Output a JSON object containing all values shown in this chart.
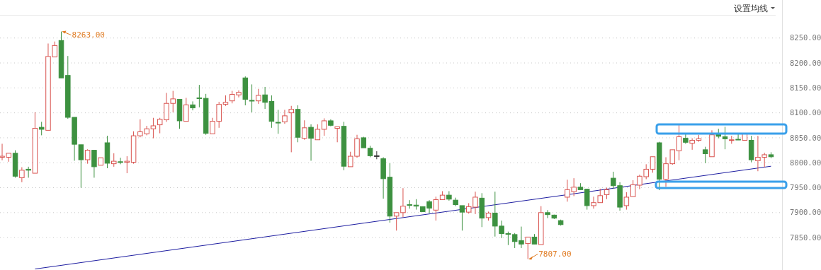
{
  "chart_data": {
    "type": "candlestick",
    "categories": [
      null,
      null,
      null,
      null,
      null,
      null,
      null,
      null,
      null,
      null,
      null,
      null,
      null,
      null,
      null,
      null,
      null,
      null,
      null,
      null,
      null,
      null,
      null,
      null,
      null,
      null,
      null,
      null,
      null,
      null,
      null,
      null,
      null,
      null,
      null,
      null,
      null,
      null,
      null,
      null,
      null,
      null,
      null,
      null,
      null,
      null,
      null,
      null,
      null,
      null,
      null,
      null,
      null,
      null,
      null,
      null,
      null,
      null,
      null,
      null,
      null,
      null,
      null,
      null,
      null,
      null,
      null,
      null,
      null,
      null,
      null,
      null,
      null,
      null,
      null,
      null,
      null,
      null,
      null,
      null,
      null,
      null,
      null,
      null,
      null,
      null,
      null,
      null,
      null,
      null,
      null,
      null,
      null,
      null,
      null,
      null,
      null,
      null,
      null,
      null,
      null,
      null,
      null,
      null,
      null,
      null,
      null,
      null,
      null,
      null,
      null,
      null,
      null,
      null,
      null,
      null,
      null,
      null
    ],
    "ohlc": [
      [
        8011,
        8038,
        8005,
        8013
      ],
      [
        8011,
        8019,
        8002,
        8019
      ],
      [
        8019,
        8025,
        7970,
        7973
      ],
      [
        7970,
        7991,
        7961,
        7985
      ],
      [
        7987,
        7992,
        7970,
        7985
      ],
      [
        7979,
        8101,
        7979,
        8069
      ],
      [
        8071,
        8082,
        8055,
        8067
      ],
      [
        8065,
        8239,
        8065,
        8213
      ],
      [
        8212,
        8243,
        8212,
        8235
      ],
      [
        8245,
        8263,
        8170,
        8170
      ],
      [
        8175,
        8214,
        8088,
        8091
      ],
      [
        8091,
        8091,
        8004,
        8037
      ],
      [
        8036,
        8036,
        7950,
        8006
      ],
      [
        8006,
        8027,
        7998,
        8025
      ],
      [
        8025,
        8025,
        7970,
        7992
      ],
      [
        7995,
        8010,
        7995,
        8010
      ],
      [
        8040,
        8054,
        7989,
        7999
      ],
      [
        7998,
        8019,
        7992,
        8003
      ],
      [
        8002,
        8010,
        7997,
        8001
      ],
      [
        8001,
        8013,
        7979,
        8003
      ],
      [
        8001,
        8063,
        7998,
        8054
      ],
      [
        8054,
        8087,
        8051,
        8062
      ],
      [
        8058,
        8074,
        8055,
        8068
      ],
      [
        8068,
        8090,
        8049,
        8074
      ],
      [
        8076,
        8090,
        8059,
        8087
      ],
      [
        8086,
        8140,
        8082,
        8119
      ],
      [
        8119,
        8144,
        8101,
        8128
      ],
      [
        8127,
        8127,
        8068,
        8084
      ],
      [
        8083,
        8130,
        8083,
        8116
      ],
      [
        8116,
        8123,
        8105,
        8110
      ],
      [
        8130,
        8156,
        8111,
        8129
      ],
      [
        8129,
        8138,
        8056,
        8059
      ],
      [
        8058,
        8090,
        8058,
        8083
      ],
      [
        8083,
        8122,
        8070,
        8117
      ],
      [
        8117,
        8135,
        8114,
        8121
      ],
      [
        8124,
        8144,
        8119,
        8137
      ],
      [
        8136,
        8145,
        8131,
        8141
      ],
      [
        8170,
        8173,
        8115,
        8127
      ],
      [
        8125,
        8157,
        8101,
        8124
      ],
      [
        8124,
        8148,
        8118,
        8135
      ],
      [
        8136,
        8152,
        8108,
        8121
      ],
      [
        8123,
        8135,
        8070,
        8083
      ],
      [
        8081,
        8106,
        8058,
        8080
      ],
      [
        8082,
        8106,
        8078,
        8094
      ],
      [
        8100,
        8114,
        8021,
        8107
      ],
      [
        8107,
        8115,
        8041,
        8051
      ],
      [
        8049,
        8085,
        8046,
        8070
      ],
      [
        8071,
        8077,
        8004,
        8049
      ],
      [
        8046,
        8077,
        8046,
        8067
      ],
      [
        8067,
        8089,
        8054,
        8084
      ],
      [
        8084,
        8087,
        8073,
        8075
      ],
      [
        8069,
        8072,
        8041,
        8072
      ],
      [
        8073,
        8082,
        7985,
        7993
      ],
      [
        7992,
        8022,
        7992,
        8013
      ],
      [
        8013,
        8056,
        8010,
        8048
      ],
      [
        8050,
        8052,
        8030,
        8030
      ],
      [
        8029,
        8034,
        8011,
        8014
      ],
      [
        8014,
        8023,
        8007,
        8013
      ],
      [
        8008,
        8011,
        7928,
        7968
      ],
      [
        7971,
        7999,
        7880,
        7893
      ],
      [
        7893,
        7900,
        7864,
        7900
      ],
      [
        7900,
        7949,
        7891,
        7913
      ],
      [
        7916,
        7925,
        7908,
        7915
      ],
      [
        7915,
        7927,
        7906,
        7913
      ],
      [
        7912,
        7912,
        7902,
        7902
      ],
      [
        7922,
        7925,
        7899,
        7909
      ],
      [
        7905,
        7932,
        7884,
        7926
      ],
      [
        7926,
        7943,
        7926,
        7935
      ],
      [
        7935,
        7943,
        7924,
        7927
      ],
      [
        7925,
        7930,
        7913,
        7916
      ],
      [
        7914,
        7914,
        7864,
        7901
      ],
      [
        7901,
        7919,
        7898,
        7912
      ],
      [
        7911,
        7942,
        7897,
        7931
      ],
      [
        7929,
        7939,
        7871,
        7889
      ],
      [
        7890,
        7902,
        7884,
        7899
      ],
      [
        7899,
        7942,
        7852,
        7873
      ],
      [
        7873,
        7884,
        7849,
        7858
      ],
      [
        7858,
        7862,
        7835,
        7857
      ],
      [
        7856,
        7859,
        7829,
        7842
      ],
      [
        7844,
        7872,
        7829,
        7837
      ],
      [
        7838,
        7851,
        7807,
        7851
      ],
      [
        7851,
        7857,
        7837,
        7837
      ],
      [
        7836,
        7913,
        7836,
        7900
      ],
      [
        7900,
        7905,
        7889,
        7896
      ],
      [
        7895,
        7896,
        7887,
        7889
      ],
      [
        7884,
        7886,
        7874,
        7876
      ],
      [
        7931,
        7966,
        7922,
        7946
      ],
      [
        7942,
        7969,
        7933,
        7951
      ],
      [
        7951,
        7959,
        7946,
        7946
      ],
      [
        7947,
        7947,
        7906,
        7914
      ],
      [
        7914,
        7932,
        7908,
        7920
      ],
      [
        7920,
        7948,
        7920,
        7934
      ],
      [
        7936,
        7950,
        7927,
        7946
      ],
      [
        7969,
        7982,
        7948,
        7954
      ],
      [
        7954,
        7961,
        7904,
        7911
      ],
      [
        7914,
        7941,
        7906,
        7931
      ],
      [
        7932,
        7965,
        7932,
        7956
      ],
      [
        7955,
        7976,
        7947,
        7973
      ],
      [
        7972,
        7997,
        7967,
        7987
      ],
      [
        7987,
        8012,
        7980,
        8012
      ],
      [
        8040,
        8042,
        7945,
        7967
      ],
      [
        7967,
        8011,
        7952,
        7998
      ],
      [
        7998,
        8026,
        7996,
        8026
      ],
      [
        8024,
        8077,
        8005,
        8052
      ],
      [
        8049,
        8058,
        8038,
        8041
      ],
      [
        8039,
        8049,
        8026,
        8045
      ],
      [
        8045,
        8056,
        8042,
        8048
      ],
      [
        8026,
        8032,
        7999,
        8018
      ],
      [
        8012,
        8065,
        8012,
        8056
      ],
      [
        8058,
        8068,
        8049,
        8053
      ],
      [
        8052,
        8072,
        8027,
        8048
      ],
      [
        8045,
        8054,
        8038,
        8046
      ],
      [
        8047,
        8058,
        8046,
        8046
      ],
      [
        8045,
        8059,
        8045,
        8059
      ],
      [
        8045,
        8054,
        8001,
        8006
      ],
      [
        8004,
        8054,
        7983,
        8011
      ],
      [
        8011,
        8020,
        7991,
        8016
      ],
      [
        8016,
        8021,
        8009,
        8012
      ]
    ],
    "colors": [
      "#d9534f",
      "#d9534f",
      "#3d9140",
      "#d9534f",
      "#3d9140",
      "#d9534f",
      "#3d9140",
      "#d9534f",
      "#d9534f",
      "#3d9140",
      "#3d9140",
      "#3d9140",
      "#3d9140",
      "#d9534f",
      "#3d9140",
      "#d9534f",
      "#3d9140",
      "#d9534f",
      "#3d9140",
      "#d9534f",
      "#d9534f",
      "#d9534f",
      "#d9534f",
      "#d9534f",
      "#d9534f",
      "#d9534f",
      "#d9534f",
      "#3d9140",
      "#d9534f",
      "#3d9140",
      "#3d9140",
      "#3d9140",
      "#d9534f",
      "#d9534f",
      "#d9534f",
      "#d9534f",
      "#d9534f",
      "#3d9140",
      "#3d9140",
      "#d9534f",
      "#3d9140",
      "#3d9140",
      "#3d9140",
      "#d9534f",
      "#d9534f",
      "#3d9140",
      "#d9534f",
      "#3d9140",
      "#d9534f",
      "#d9534f",
      "#3d9140",
      "#d9534f",
      "#3d9140",
      "#d9534f",
      "#d9534f",
      "#3d9140",
      "#3d9140",
      "#333333",
      "#3d9140",
      "#3d9140",
      "#d9534f",
      "#d9534f",
      "#3d9140",
      "#3d9140",
      "#3d9140",
      "#3d9140",
      "#d9534f",
      "#d9534f",
      "#3d9140",
      "#3d9140",
      "#3d9140",
      "#d9534f",
      "#d9534f",
      "#3d9140",
      "#d9534f",
      "#3d9140",
      "#3d9140",
      "#3d9140",
      "#3d9140",
      "#3d9140",
      "#d9534f",
      "#3d9140",
      "#d9534f",
      "#3d9140",
      "#3d9140",
      "#3d9140",
      "#d9534f",
      "#d9534f",
      "#3d9140",
      "#3d9140",
      "#d9534f",
      "#d9534f",
      "#d9534f",
      "#3d9140",
      "#3d9140",
      "#d9534f",
      "#d9534f",
      "#d9534f",
      "#d9534f",
      "#d9534f",
      "#3d9140",
      "#d9534f",
      "#d9534f",
      "#d9534f",
      "#3d9140",
      "#d9534f",
      "#d9534f",
      "#3d9140",
      "#d9534f",
      "#3d9140",
      "#3d9140",
      "#d9534f",
      "#3d9140",
      "#d9534f",
      "#3d9140",
      "#d9534f",
      "#d9534f",
      "#3d9140"
    ],
    "series": [
      {
        "type": "line",
        "color": "#1c1ca0",
        "values": [
          null,
          null,
          null,
          null,
          null,
          7787,
          null,
          null,
          null,
          null,
          null,
          null,
          null,
          null,
          null,
          null,
          null,
          null,
          null,
          null,
          null,
          null,
          null,
          null,
          null,
          null,
          null,
          null,
          null,
          null,
          null,
          null,
          null,
          null,
          null,
          null,
          null,
          null,
          null,
          null,
          null,
          null,
          null,
          null,
          null,
          null,
          null,
          null,
          null,
          null,
          null,
          null,
          null,
          null,
          null,
          null,
          null,
          null,
          null,
          null,
          null,
          null,
          null,
          null,
          null,
          null,
          null,
          null,
          null,
          null,
          null,
          null,
          null,
          null,
          null,
          null,
          null,
          null,
          null,
          null,
          null,
          null,
          null,
          null,
          null,
          null,
          null,
          null,
          null,
          null,
          null,
          null,
          null,
          null,
          null,
          null,
          null,
          null,
          null,
          null,
          null,
          null,
          null,
          null,
          null,
          null,
          null,
          null,
          null,
          null,
          null,
          null,
          null,
          null,
          null,
          null,
          null,
          7993
        ]
      }
    ],
    "ylim": [
      7785,
      8295
    ],
    "yticks": [
      {
        "value": 7850,
        "label": "7850.00"
      },
      {
        "value": 7900,
        "label": "7900.00"
      },
      {
        "value": 7950,
        "label": "7950.00"
      },
      {
        "value": 8000,
        "label": "8000.00"
      },
      {
        "value": 8050,
        "label": "8050.00"
      },
      {
        "value": 8100,
        "label": "8100.00"
      },
      {
        "value": 8150,
        "label": "8150.00"
      },
      {
        "value": 8200,
        "label": "8200.00"
      },
      {
        "value": 8250,
        "label": "8250.00"
      }
    ],
    "grid": "y",
    "annotations": [
      "8263.00",
      "7807.00",
      "设置均线"
    ]
  }
}
